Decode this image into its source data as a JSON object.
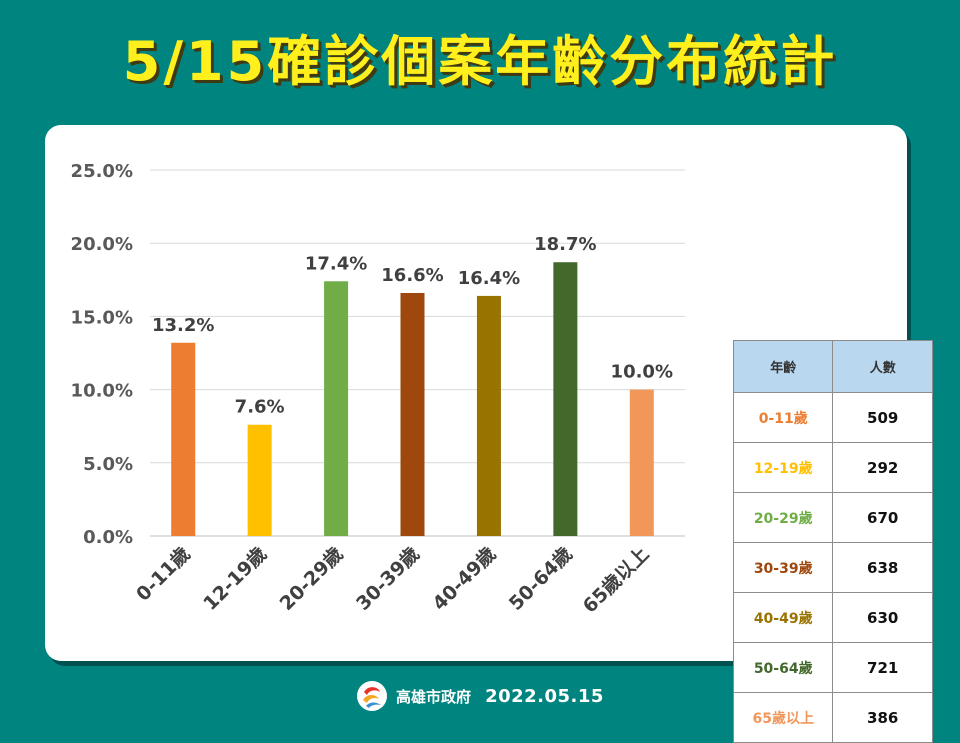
{
  "title": "5/15確診個案年齡分布統計",
  "chart_data": {
    "type": "bar",
    "categories": [
      "0-11歲",
      "12-19歲",
      "20-29歲",
      "30-39歲",
      "40-49歲",
      "50-64歲",
      "65歲以上"
    ],
    "values": [
      13.2,
      7.6,
      17.4,
      16.6,
      16.4,
      18.7,
      10.0
    ],
    "data_labels": [
      "13.2%",
      "7.6%",
      "17.4%",
      "16.6%",
      "16.4%",
      "18.7%",
      "10.0%"
    ],
    "colors": [
      "#ed7d31",
      "#ffc000",
      "#70ad47",
      "#9e480e",
      "#997300",
      "#43682b",
      "#f1975a"
    ],
    "ylim": [
      0,
      25
    ],
    "yticks": [
      0,
      5,
      10,
      15,
      20,
      25
    ],
    "ytick_labels": [
      "0.0%",
      "5.0%",
      "10.0%",
      "15.0%",
      "20.0%",
      "25.0%"
    ],
    "grid": true,
    "xlabel": "",
    "ylabel": ""
  },
  "table": {
    "headers": [
      "年齡",
      "人數"
    ],
    "rows": [
      {
        "age": "0-11歲",
        "count": "509",
        "color": "#ed7d31"
      },
      {
        "age": "12-19歲",
        "count": "292",
        "color": "#ffc000"
      },
      {
        "age": "20-29歲",
        "count": "670",
        "color": "#70ad47"
      },
      {
        "age": "30-39歲",
        "count": "638",
        "color": "#9e480e"
      },
      {
        "age": "40-49歲",
        "count": "630",
        "color": "#997300"
      },
      {
        "age": "50-64歲",
        "count": "721",
        "color": "#43682b"
      },
      {
        "age": "65歲以上",
        "count": "386",
        "color": "#f1975a"
      }
    ]
  },
  "footer": {
    "organization": "高雄市政府",
    "date": "2022.05.15",
    "logo_icon": "kaohsiung-logo-icon"
  }
}
